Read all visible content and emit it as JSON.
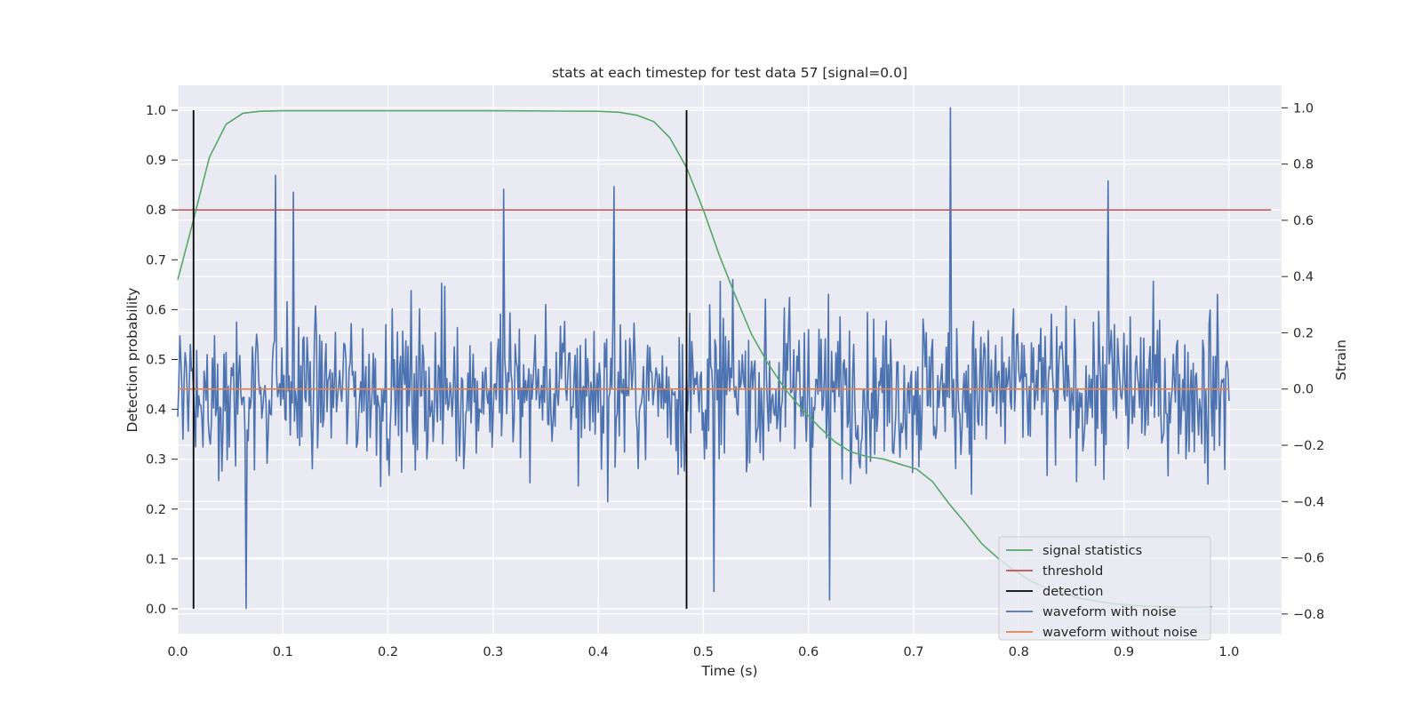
{
  "chart_data": {
    "type": "line",
    "title": "stats at each timestep for test data 57 [signal=0.0]",
    "xlabel": "Time (s)",
    "ylabel": "Detection probability",
    "ylabel_right": "Strain",
    "xlim": [
      0.0,
      1.05
    ],
    "ylim": [
      -0.05,
      1.05
    ],
    "ylim_right": [
      -0.87,
      1.08
    ],
    "x_ticks": [
      0.0,
      0.1,
      0.2,
      0.3,
      0.4,
      0.5,
      0.6,
      0.7,
      0.8,
      0.9,
      1.0
    ],
    "x_tick_labels": [
      "0.0",
      "0.1",
      "0.2",
      "0.3",
      "0.4",
      "0.5",
      "0.6",
      "0.7",
      "0.8",
      "0.9",
      "1.0"
    ],
    "y_ticks": [
      0.0,
      0.1,
      0.2,
      0.3,
      0.4,
      0.5,
      0.6,
      0.7,
      0.8,
      0.9,
      1.0
    ],
    "y_tick_labels": [
      "0.0",
      "0.1",
      "0.2",
      "0.3",
      "0.4",
      "0.5",
      "0.6",
      "0.7",
      "0.8",
      "0.9",
      "1.0"
    ],
    "y_right_ticks": [
      -0.8,
      -0.6,
      -0.4,
      -0.2,
      0.0,
      0.2,
      0.4,
      0.6,
      0.8,
      1.0
    ],
    "y_right_tick_labels": [
      "−0.8",
      "−0.6",
      "−0.4",
      "−0.2",
      "0.0",
      "0.2",
      "0.4",
      "0.6",
      "0.8",
      "1.0"
    ],
    "grid": true,
    "legend_position": "lower-right",
    "series": [
      {
        "name": "signal statistics",
        "color": "#55a868",
        "axis": "left",
        "x": [
          0.0,
          0.015,
          0.03,
          0.046,
          0.062,
          0.078,
          0.1,
          0.15,
          0.2,
          0.3,
          0.4,
          0.42,
          0.437,
          0.453,
          0.468,
          0.484,
          0.5,
          0.515,
          0.53,
          0.546,
          0.562,
          0.578,
          0.594,
          0.61,
          0.625,
          0.64,
          0.656,
          0.672,
          0.687,
          0.703,
          0.718,
          0.734,
          0.75,
          0.765,
          0.781,
          0.797,
          0.812,
          0.828,
          0.843,
          0.86,
          0.875,
          0.89,
          0.906,
          0.92,
          0.937,
          0.953,
          0.968,
          0.984
        ],
        "y": [
          0.66,
          0.78,
          0.905,
          0.972,
          0.994,
          0.998,
          0.999,
          0.999,
          0.999,
          0.999,
          0.998,
          0.996,
          0.99,
          0.977,
          0.945,
          0.885,
          0.8,
          0.71,
          0.63,
          0.55,
          0.49,
          0.44,
          0.4,
          0.365,
          0.335,
          0.315,
          0.305,
          0.3,
          0.29,
          0.28,
          0.255,
          0.21,
          0.17,
          0.13,
          0.1,
          0.075,
          0.055,
          0.04,
          0.03,
          0.02,
          0.015,
          0.01,
          0.007,
          0.005,
          0.004,
          0.003,
          0.003,
          0.004
        ]
      },
      {
        "name": "threshold",
        "color": "#c44e52",
        "axis": "left",
        "x": [
          0.0,
          1.04
        ],
        "y": [
          0.8,
          0.8
        ]
      },
      {
        "name": "detection",
        "color": "#000000",
        "axis": "left",
        "segments": [
          {
            "x": 0.015,
            "y0": 0.0,
            "y1": 1.0
          },
          {
            "x": 0.484,
            "y0": 0.0,
            "y1": 1.0
          }
        ]
      },
      {
        "name": "waveform with noise",
        "color": "#4c72b0",
        "axis": "right",
        "x_start": 0.0,
        "x_step": 0.001,
        "y_range": [
          -0.78,
          1.0
        ],
        "seed": 57,
        "y_peaks": [
          {
            "x": 0.065,
            "y": -0.78
          },
          {
            "x": 0.093,
            "y": 0.76
          },
          {
            "x": 0.11,
            "y": 0.7
          },
          {
            "x": 0.31,
            "y": 0.71
          },
          {
            "x": 0.415,
            "y": 0.72
          },
          {
            "x": 0.51,
            "y": -0.72
          },
          {
            "x": 0.62,
            "y": -0.75
          },
          {
            "x": 0.735,
            "y": 1.0
          },
          {
            "x": 0.885,
            "y": 0.74
          }
        ]
      },
      {
        "name": "waveform without noise",
        "color": "#dd8452",
        "axis": "right",
        "x": [
          0.0,
          1.0
        ],
        "y": [
          0.0,
          0.0
        ]
      }
    ]
  }
}
